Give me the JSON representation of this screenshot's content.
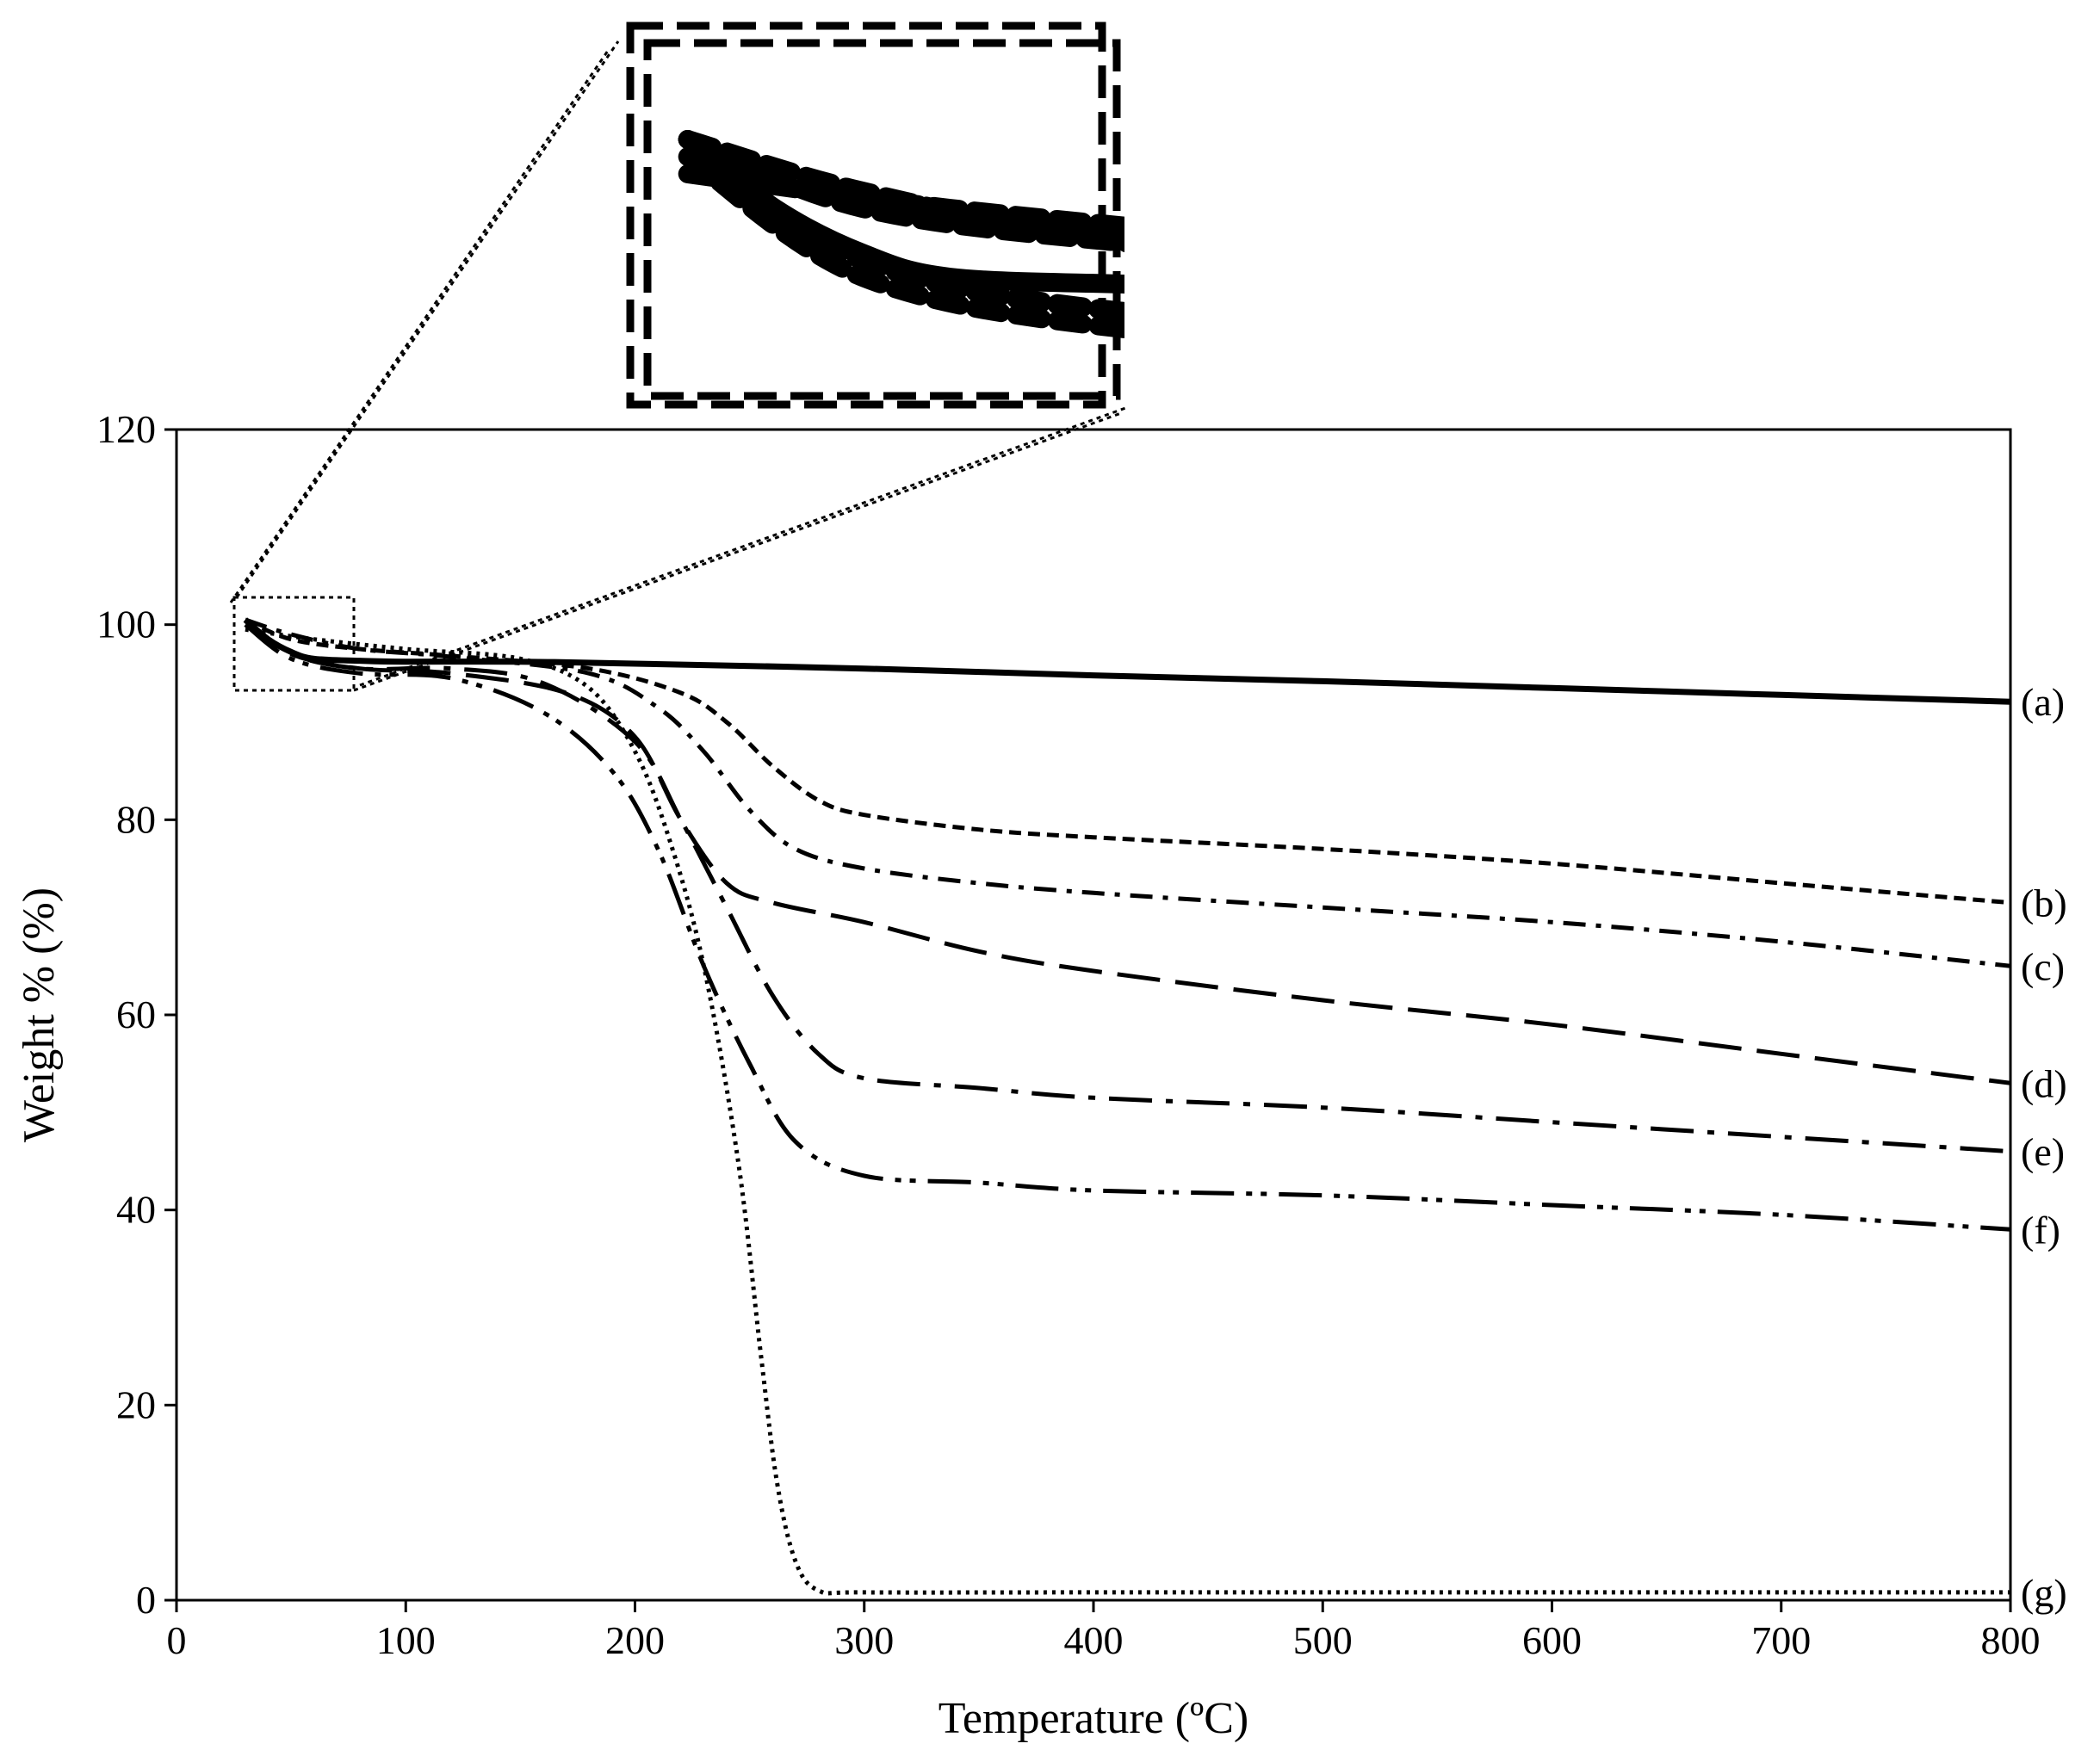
{
  "chart_data": {
    "type": "line",
    "title": "",
    "xlabel": "Temperature (ºC)",
    "ylabel": "Weight % (%)",
    "xlim": [
      0,
      800
    ],
    "ylim": [
      0,
      120
    ],
    "xticks": [
      "0",
      "100",
      "200",
      "300",
      "400",
      "500",
      "600",
      "700",
      "800"
    ],
    "yticks": [
      "0",
      "20",
      "40",
      "60",
      "80",
      "100",
      "120"
    ],
    "grid": false,
    "legend": "inline-right",
    "line_color": "#000000",
    "inset": {
      "description_source": "zoomed view of the 25–80 ºC, 93–103 % region",
      "x_range": [
        25,
        80
      ],
      "y_range": [
        93,
        103
      ]
    },
    "series": [
      {
        "name": "(a)",
        "style": "solid",
        "x": [
          30,
          40,
          50,
          60,
          80,
          100,
          150,
          200,
          300,
          400,
          500,
          600,
          700,
          800
        ],
        "y": [
          100.5,
          98.5,
          97.2,
          96.5,
          96.3,
          96.2,
          96.2,
          96.0,
          95.5,
          94.8,
          94.2,
          93.5,
          92.8,
          92.1
        ]
      },
      {
        "name": "(b)",
        "style": "dashed-short",
        "x": [
          30,
          50,
          80,
          120,
          180,
          220,
          240,
          260,
          280,
          300,
          350,
          400,
          500,
          600,
          700,
          800
        ],
        "y": [
          100.5,
          98.5,
          97.5,
          96.8,
          95.5,
          93.0,
          90.0,
          85.5,
          82.0,
          80.5,
          79.0,
          78.2,
          77.0,
          75.5,
          73.5,
          71.5
        ]
      },
      {
        "name": "(c)",
        "style": "dash-dot",
        "x": [
          30,
          50,
          80,
          120,
          180,
          210,
          230,
          250,
          270,
          300,
          350,
          400,
          500,
          600,
          700,
          800
        ],
        "y": [
          100.5,
          99.0,
          97.5,
          96.7,
          95.0,
          91.5,
          87.0,
          81.0,
          77.0,
          75.0,
          73.5,
          72.5,
          71.0,
          69.5,
          67.5,
          65.0
        ]
      },
      {
        "name": "(d)",
        "style": "long-dash",
        "x": [
          30,
          50,
          80,
          120,
          170,
          200,
          220,
          240,
          260,
          300,
          350,
          400,
          500,
          600,
          700,
          800
        ],
        "y": [
          100.5,
          97.0,
          95.5,
          95.0,
          93.0,
          88.5,
          80.0,
          73.5,
          71.5,
          69.5,
          66.5,
          64.5,
          61.5,
          59.0,
          56.0,
          53.0
        ]
      },
      {
        "name": "(e)",
        "style": "long-dash-dot",
        "x": [
          30,
          50,
          80,
          120,
          160,
          200,
          220,
          240,
          260,
          280,
          300,
          350,
          400,
          500,
          600,
          700,
          800
        ],
        "y": [
          100.5,
          97.0,
          95.5,
          95.5,
          94.0,
          88.0,
          80.0,
          71.0,
          62.0,
          56.0,
          53.5,
          52.5,
          51.5,
          50.5,
          49.0,
          47.5,
          46.0
        ]
      },
      {
        "name": "(f)",
        "style": "long-dash-dot-dot",
        "x": [
          30,
          50,
          80,
          120,
          160,
          190,
          210,
          230,
          250,
          270,
          300,
          350,
          400,
          500,
          600,
          700,
          800
        ],
        "y": [
          100.0,
          96.5,
          95.0,
          94.5,
          91.0,
          85.0,
          77.0,
          65.0,
          55.0,
          47.0,
          43.5,
          42.8,
          42.0,
          41.5,
          40.5,
          39.5,
          38.0
        ]
      },
      {
        "name": "(g)",
        "style": "dotted",
        "x": [
          30,
          60,
          100,
          150,
          180,
          200,
          215,
          230,
          245,
          255,
          262,
          270,
          280,
          300,
          400,
          500,
          600,
          700,
          800
        ],
        "y": [
          99.5,
          98.5,
          97.5,
          96.5,
          93.5,
          87.0,
          78.0,
          65.0,
          45.0,
          25.0,
          12.0,
          4.0,
          1.0,
          0.8,
          0.8,
          0.8,
          0.8,
          0.8,
          0.8
        ]
      }
    ]
  }
}
